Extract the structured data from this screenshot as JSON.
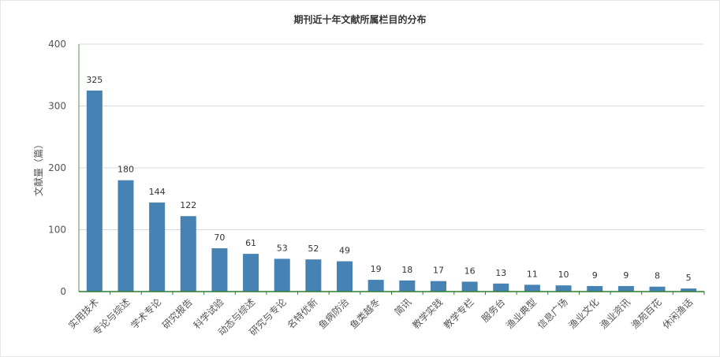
{
  "chart_data": {
    "type": "bar",
    "title": "期刊近十年文献所属栏目的分布",
    "ylabel": "文献量（篇）",
    "xlabel": "",
    "ylim": [
      0,
      400
    ],
    "yticks": [
      0,
      100,
      200,
      300,
      400
    ],
    "grid": true,
    "legend": "none",
    "bar_color": "#4682b4",
    "categories": [
      "实用技术",
      "专论与综述",
      "学术专论",
      "研究报告",
      "科学试验",
      "动态与综述",
      "研究与专论",
      "名特优新",
      "鱼病防治",
      "鱼类越冬",
      "简讯",
      "教学实践",
      "教学专栏",
      "服务台",
      "渔业典型",
      "信息广场",
      "渔业文化",
      "渔业资讯",
      "渔苑百花",
      "休闲渔话"
    ],
    "values": [
      325,
      180,
      144,
      122,
      70,
      61,
      53,
      52,
      49,
      19,
      18,
      17,
      16,
      13,
      11,
      10,
      9,
      9,
      8,
      5
    ]
  }
}
